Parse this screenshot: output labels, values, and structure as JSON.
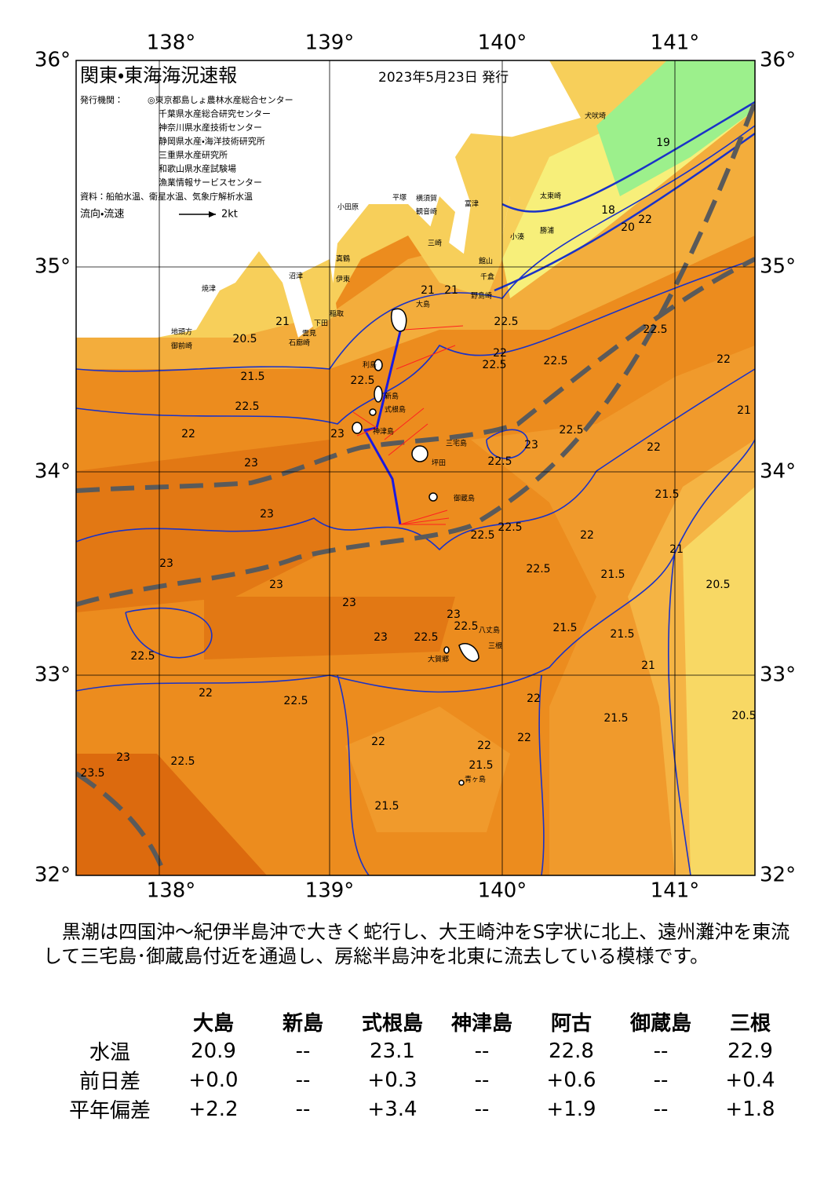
{
  "map": {
    "title": "関東・東海海況速報",
    "date": "2023年5月23日 発行",
    "issuer_label": "発行機関：",
    "issuers": [
      "◎東京都島しょ農林水産総合センター",
      "千葉県水産総合研究センター",
      "神奈川県水産技術センター",
      "静岡県水産・海洋技術研究所",
      "三重県水産研究所",
      "和歌山県水産試験場",
      "漁業情報サービスセンター"
    ],
    "source": "資料：船舶水温、衛星水温、気象庁解析水温",
    "flow_legend": "流向・流速",
    "flow_scale": "2kt",
    "lon_labels": [
      "138°",
      "139°",
      "140°",
      "141°"
    ],
    "lat_labels": [
      "36°",
      "35°",
      "34°",
      "33°",
      "32°"
    ],
    "places": [
      "大島",
      "利島",
      "新島",
      "式根島",
      "神津島",
      "三宅島",
      "坪田",
      "御蔵島",
      "八丈島",
      "三根",
      "大賀郷",
      "青ヶ島",
      "犬吠埼",
      "太東崎",
      "勝浦",
      "小湊",
      "富津",
      "館山",
      "千倉",
      "野島崎",
      "横須賀",
      "観音崎",
      "平塚",
      "三崎",
      "小田原",
      "真鶴",
      "伊東",
      "稲取",
      "下田",
      "石廊崎",
      "雲見",
      "沼津",
      "焼津",
      "地頭方",
      "御前崎"
    ],
    "contour_labels": [
      "20.5",
      "21",
      "21.5",
      "22.5",
      "22",
      "23",
      "23",
      "22.5",
      "21",
      "22.5",
      "22.5",
      "22",
      "22",
      "22.5",
      "22.5",
      "22",
      "21",
      "22.5",
      "23",
      "22.5",
      "22",
      "21.5",
      "23",
      "23",
      "23",
      "22.5",
      "22.5",
      "22",
      "22.5",
      "21.5",
      "21",
      "20.5",
      "23",
      "23",
      "22.5",
      "23",
      "22.5",
      "22.5",
      "21.5",
      "21.5",
      "21",
      "22",
      "22.5",
      "22",
      "22",
      "21.5",
      "20.5",
      "23",
      "23.5",
      "22.5",
      "22",
      "21.5",
      "22",
      "21.5",
      "19",
      "18",
      "20",
      "21"
    ]
  },
  "summary": "黒潮は四国沖～紀伊半島沖で大きく蛇行し、大王崎沖をS字状に北上、遠州灘沖を東流して三宅島･御蔵島付近を通過し、房総半島沖を北東に流去している模様です。",
  "table": {
    "columns": [
      "大島",
      "新島",
      "式根島",
      "神津島",
      "阿古",
      "御蔵島",
      "三根"
    ],
    "rows": [
      {
        "label": "水温",
        "values": [
          "20.9",
          "--",
          "23.1",
          "--",
          "22.8",
          "--",
          "22.9"
        ]
      },
      {
        "label": "前日差",
        "values": [
          "+0.0",
          "--",
          "+0.3",
          "--",
          "+0.6",
          "--",
          "+0.4"
        ]
      },
      {
        "label": "平年偏差",
        "values": [
          "+2.2",
          "--",
          "+3.4",
          "--",
          "+1.9",
          "--",
          "+1.8"
        ]
      }
    ]
  }
}
